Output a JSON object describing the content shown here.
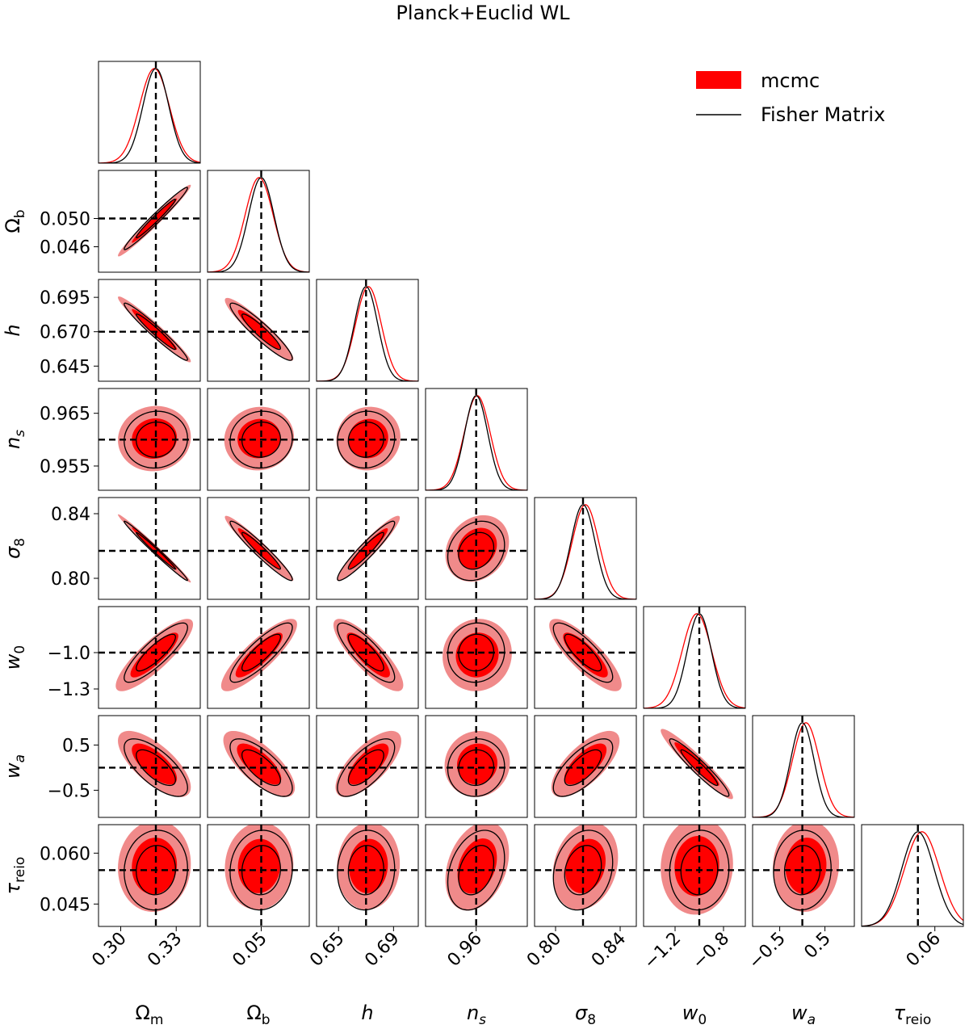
{
  "title": "Planck+Euclid WL",
  "legend": {
    "position": "top-right",
    "entries": [
      {
        "label": "mcmc",
        "kind": "filled",
        "color": "#ff0000"
      },
      {
        "label": "Fisher Matrix",
        "kind": "line",
        "color": "#000000"
      }
    ]
  },
  "colors": {
    "mcmc_outer": "#f08a8a",
    "mcmc_inner": "#ff0000",
    "fisher": "#000000",
    "fiducial": "#000000"
  },
  "chart_data": {
    "type": "triangle",
    "title": "Planck+Euclid WL",
    "params": [
      {
        "key": "Om",
        "label": "Ω",
        "sub": "m",
        "italic": false,
        "fid": 0.319,
        "sigma": 0.007,
        "mcmc_shift": -0.0008,
        "mcmc_scale": 1.15,
        "range": [
          0.288,
          0.343
        ],
        "ticks": [
          0.3,
          0.33
        ],
        "tick_labels": [
          "0.30",
          "0.33"
        ]
      },
      {
        "key": "Ob",
        "label": "Ω",
        "sub": "b",
        "italic": false,
        "fid": 0.05,
        "sigma": 0.0018,
        "mcmc_shift": -0.0003,
        "mcmc_scale": 1.1,
        "range": [
          0.0424,
          0.0568
        ],
        "ticks": [
          0.046,
          0.05
        ],
        "tick_labels": [
          "0.046",
          "0.050"
        ],
        "xtick_labels": [
          "0.05"
        ],
        "xticks": [
          0.05
        ]
      },
      {
        "key": "h",
        "label": "h",
        "sub": "",
        "italic": true,
        "fid": 0.67,
        "sigma": 0.0085,
        "mcmc_shift": 0.0017,
        "mcmc_scale": 1.1,
        "range": [
          0.634,
          0.708
        ],
        "ticks": [
          0.645,
          0.67,
          0.695
        ],
        "tick_labels": [
          "0.645",
          "0.670",
          "0.695"
        ],
        "xticks": [
          0.65,
          0.69
        ],
        "xtick_labels": [
          "0.65",
          "0.69"
        ]
      },
      {
        "key": "ns",
        "label": "n",
        "sub": "s",
        "italic": true,
        "fid": 0.96,
        "sigma": 0.0022,
        "mcmc_shift": 0.0002,
        "mcmc_scale": 1.12,
        "range": [
          0.9504,
          0.9697
        ],
        "ticks": [
          0.955,
          0.965
        ],
        "tick_labels": [
          "0.955",
          "0.965"
        ],
        "xticks": [
          0.96
        ],
        "xtick_labels": [
          "0.96"
        ]
      },
      {
        "key": "s8",
        "label": "σ",
        "sub": "8",
        "italic": true,
        "fid": 0.817,
        "sigma": 0.0075,
        "mcmc_shift": 0.0015,
        "mcmc_scale": 1.1,
        "range": [
          0.787,
          0.85
        ],
        "ticks": [
          0.8,
          0.84
        ],
        "tick_labels": [
          "0.80",
          "0.84"
        ]
      },
      {
        "key": "w0",
        "label": "w",
        "sub": "0",
        "italic": true,
        "fid": -1.0,
        "sigma": 0.1,
        "mcmc_shift": -0.02,
        "mcmc_scale": 1.22,
        "range": [
          -1.46,
          -0.62
        ],
        "ticks": [
          -1.3,
          -1.0
        ],
        "tick_labels": [
          "−1.3",
          "−1.0"
        ],
        "xticks": [
          -1.2,
          -0.8
        ],
        "xtick_labels": [
          "−1.2",
          "−0.8"
        ]
      },
      {
        "key": "wa",
        "label": "w",
        "sub": "a",
        "italic": true,
        "fid": 0.0,
        "sigma": 0.26,
        "mcmc_shift": 0.08,
        "mcmc_scale": 1.15,
        "range": [
          -1.1,
          1.15
        ],
        "ticks": [
          -0.5,
          0.5
        ],
        "tick_labels": [
          "−0.5",
          "0.5"
        ]
      },
      {
        "key": "tau",
        "label": "τ",
        "sub": "reio",
        "italic": true,
        "fid": 0.055,
        "sigma": 0.0048,
        "mcmc_shift": 0.0012,
        "mcmc_scale": 1.08,
        "range": [
          0.0384,
          0.0684
        ],
        "ticks": [
          0.045,
          0.06
        ],
        "tick_labels": [
          "0.045",
          "0.060"
        ],
        "xticks": [
          0.06
        ],
        "xtick_labels": [
          "0.06"
        ]
      }
    ],
    "correlations": [
      [
        1,
        0.98,
        -0.97,
        0.05,
        -0.99,
        0.85,
        -0.7,
        0.05
      ],
      [
        0.98,
        1,
        -0.93,
        0.05,
        -0.96,
        0.85,
        -0.72,
        0.05
      ],
      [
        -0.97,
        -0.93,
        1,
        0.05,
        0.94,
        -0.83,
        0.7,
        0.05
      ],
      [
        0.05,
        0.05,
        0.05,
        1,
        0.2,
        0.05,
        0.05,
        0.3
      ],
      [
        -0.99,
        -0.96,
        0.94,
        0.2,
        1,
        -0.82,
        0.7,
        0.2
      ],
      [
        0.85,
        0.85,
        -0.83,
        0.05,
        -0.82,
        1,
        -0.95,
        0.05
      ],
      [
        -0.7,
        -0.72,
        0.7,
        0.05,
        0.7,
        -0.95,
        1,
        0.05
      ],
      [
        0.05,
        0.05,
        0.05,
        0.3,
        0.2,
        0.05,
        0.05,
        1
      ]
    ],
    "contour_levels": [
      "68%",
      "95%"
    ],
    "fiducial_lines": "dashed"
  }
}
